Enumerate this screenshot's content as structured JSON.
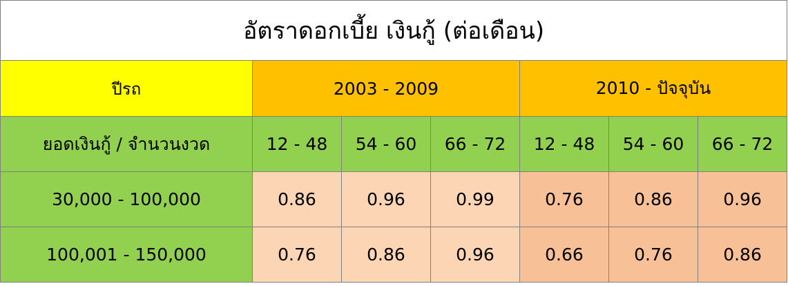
{
  "title": "อัตราดอกเบี้ย เงินกู้ (ต่อเดือน)",
  "header": {
    "year_label": "ปีรถ",
    "periods": [
      "2003 - 2009",
      "2010 - ปัจจุบัน"
    ],
    "row_label": "ยอดเงินกู้ / จำนวนงวด",
    "terms": [
      "12 - 48",
      "54 - 60",
      "66 - 72",
      "12 - 48",
      "54 - 60",
      "66 - 72"
    ]
  },
  "rows": [
    {
      "range": "30,000 - 100,000",
      "rates": [
        "0.86",
        "0.96",
        "0.99",
        "0.76",
        "0.86",
        "0.96"
      ]
    },
    {
      "range": "100,001 - 150,000",
      "rates": [
        "0.76",
        "0.86",
        "0.96",
        "0.66",
        "0.76",
        "0.86"
      ]
    }
  ],
  "colors": {
    "title_bg": "#ffffff",
    "year_label_bg": "#ffff00",
    "period_bg": "#ffc000",
    "label_bg": "#92d050",
    "rate_period1_bg": "#fcd5b4",
    "rate_period2_bg": "#f8c096",
    "border": "#7f7f7f"
  }
}
